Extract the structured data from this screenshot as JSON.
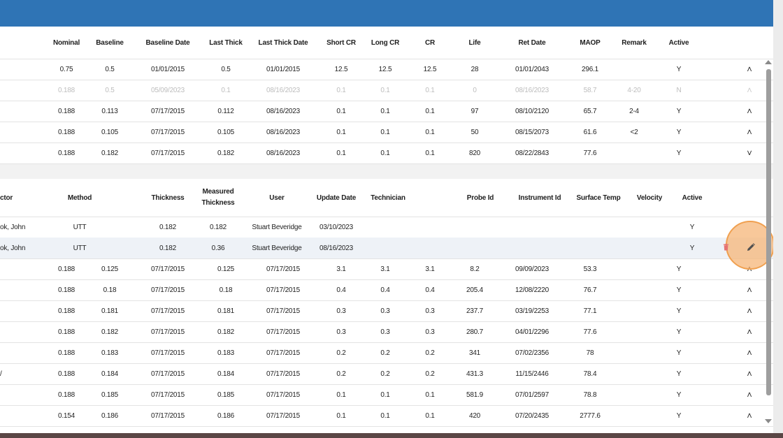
{
  "upper_table": {
    "headers": [
      "Nominal",
      "Baseline",
      "Baseline Date",
      "Last Thick",
      "Last Thick Date",
      "Short CR",
      "Long CR",
      "CR",
      "Life",
      "Ret Date",
      "MAOP",
      "Remark",
      "Active"
    ],
    "rows": [
      {
        "values": [
          "0.75",
          "0.5",
          "01/01/2015",
          "0.5",
          "01/01/2015",
          "12.5",
          "12.5",
          "12.5",
          "28",
          "01/01/2043",
          "296.1",
          "",
          "Y"
        ],
        "chevron": "up"
      },
      {
        "values": [
          "0.188",
          "0.5",
          "05/09/2023",
          "0.1",
          "08/16/2023",
          "0.1",
          "0.1",
          "0.1",
          "0",
          "08/16/2023",
          "58.7",
          "4-20",
          "N"
        ],
        "chevron": "up",
        "faded": true
      },
      {
        "values": [
          "0.188",
          "0.113",
          "07/17/2015",
          "0.112",
          "08/16/2023",
          "0.1",
          "0.1",
          "0.1",
          "97",
          "08/10/2120",
          "65.7",
          "2-4",
          "Y"
        ],
        "chevron": "up"
      },
      {
        "values": [
          "0.188",
          "0.105",
          "07/17/2015",
          "0.105",
          "08/16/2023",
          "0.1",
          "0.1",
          "0.1",
          "50",
          "08/15/2073",
          "61.6",
          "<2",
          "Y"
        ],
        "chevron": "up"
      },
      {
        "values": [
          "0.188",
          "0.182",
          "07/17/2015",
          "0.182",
          "08/16/2023",
          "0.1",
          "0.1",
          "0.1",
          "820",
          "08/22/2843",
          "77.6",
          "",
          "Y"
        ],
        "chevron": "down"
      }
    ]
  },
  "sub_table": {
    "headers": {
      "inspector": "ctor",
      "method": "Method",
      "thickness": "Thickness",
      "measured_1": "Measured",
      "measured_2": "Thickness",
      "user": "User",
      "update_date": "Update Date",
      "technician": "Technician",
      "probe_id": "Probe Id",
      "instrument_id": "Instrument Id",
      "surface_temp": "Surface Temp",
      "velocity": "Velocity",
      "active": "Active"
    },
    "rows": [
      {
        "inspector": "ok, John",
        "method": "UTT",
        "thickness": "0.182",
        "measured": "0.182",
        "user": "Stuart Beveridge",
        "update_date": "03/10/2023",
        "active": "Y"
      },
      {
        "inspector": "ok, John",
        "method": "UTT",
        "thickness": "0.182",
        "measured": "0.36",
        "user": "Stuart Beveridge",
        "update_date": "08/16/2023",
        "active": "Y"
      }
    ]
  },
  "lower_table": {
    "rows": [
      {
        "prefix": "",
        "values": [
          "0.188",
          "0.125",
          "07/17/2015",
          "0.125",
          "07/17/2015",
          "3.1",
          "3.1",
          "3.1",
          "8.2",
          "09/09/2023",
          "53.3",
          "",
          "Y"
        ],
        "chevron": "up"
      },
      {
        "prefix": "",
        "values": [
          "0.188",
          "0.18",
          "07/17/2015",
          "0.18",
          "07/17/2015",
          "0.4",
          "0.4",
          "0.4",
          "205.4",
          "12/08/2220",
          "76.7",
          "",
          "Y"
        ],
        "chevron": "up"
      },
      {
        "prefix": "",
        "values": [
          "0.188",
          "0.181",
          "07/17/2015",
          "0.181",
          "07/17/2015",
          "0.3",
          "0.3",
          "0.3",
          "237.7",
          "03/19/2253",
          "77.1",
          "",
          "Y"
        ],
        "chevron": "up"
      },
      {
        "prefix": "",
        "values": [
          "0.188",
          "0.182",
          "07/17/2015",
          "0.182",
          "07/17/2015",
          "0.3",
          "0.3",
          "0.3",
          "280.7",
          "04/01/2296",
          "77.6",
          "",
          "Y"
        ],
        "chevron": "up"
      },
      {
        "prefix": "",
        "values": [
          "0.188",
          "0.183",
          "07/17/2015",
          "0.183",
          "07/17/2015",
          "0.2",
          "0.2",
          "0.2",
          "341",
          "07/02/2356",
          "78",
          "",
          "Y"
        ],
        "chevron": "up"
      },
      {
        "prefix": "/",
        "values": [
          "0.188",
          "0.184",
          "07/17/2015",
          "0.184",
          "07/17/2015",
          "0.2",
          "0.2",
          "0.2",
          "431.3",
          "11/15/2446",
          "78.4",
          "",
          "Y"
        ],
        "chevron": "up"
      },
      {
        "prefix": "",
        "values": [
          "0.188",
          "0.185",
          "07/17/2015",
          "0.185",
          "07/17/2015",
          "0.1",
          "0.1",
          "0.1",
          "581.9",
          "07/01/2597",
          "78.8",
          "",
          "Y"
        ],
        "chevron": "up"
      },
      {
        "prefix": "",
        "values": [
          "0.154",
          "0.186",
          "07/17/2015",
          "0.186",
          "07/17/2015",
          "0.1",
          "0.1",
          "0.1",
          "420",
          "07/20/2435",
          "2777.6",
          "",
          "Y"
        ],
        "chevron": "up"
      }
    ]
  },
  "icons": {
    "chevron_up": "˄",
    "chevron_down": "˅",
    "delete": "trash-icon",
    "edit": "pencil-icon"
  },
  "colors": {
    "header": "#2f74b5",
    "delete": "#e57373",
    "highlight": "#f6b578"
  }
}
